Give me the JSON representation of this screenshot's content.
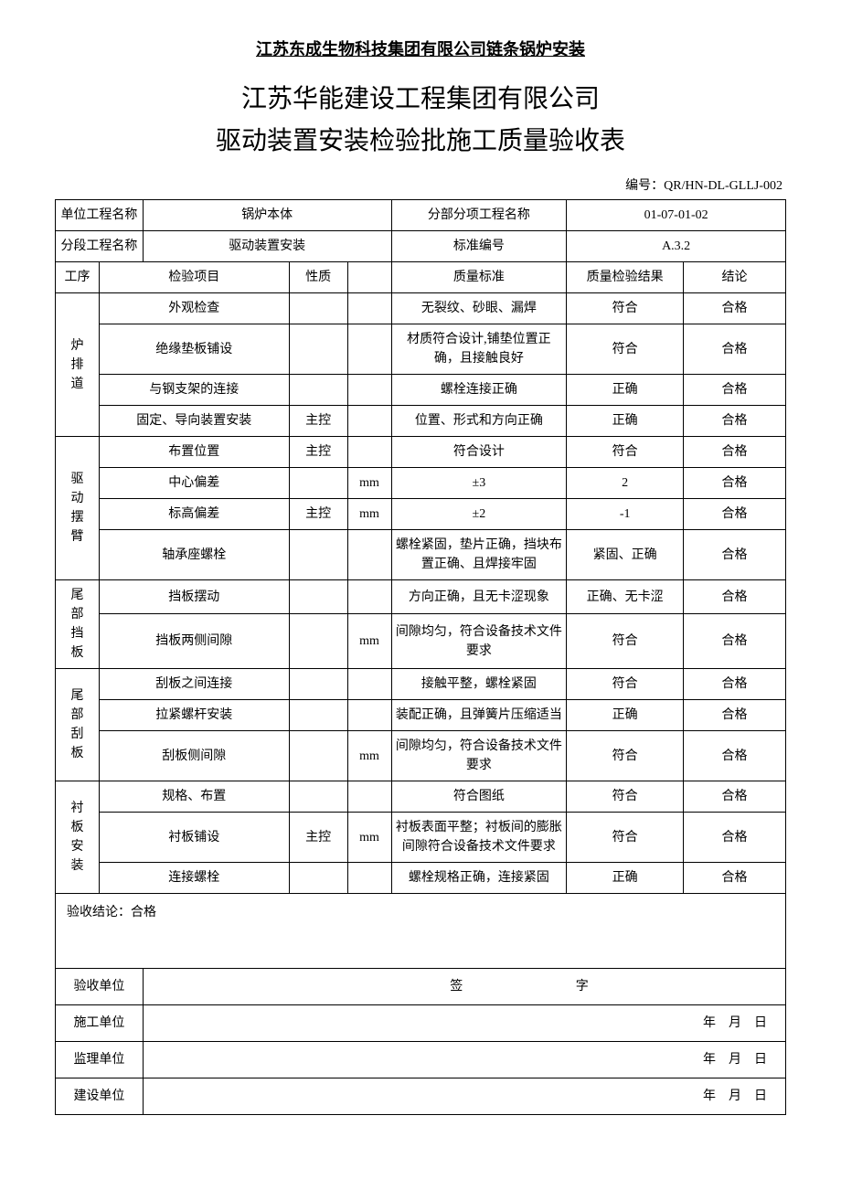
{
  "header": "江苏东成生物科技集团有限公司链条锅炉安装",
  "title1": "江苏华能建设工程集团有限公司",
  "title2": "驱动装置安装检验批施工质量验收表",
  "docNoLabel": "编号：",
  "docNo": "QR/HN-DL-GLLJ-002",
  "meta": {
    "unitProjectLabel": "单位工程名称",
    "unitProject": "锅炉本体",
    "subProjectLabel": "分部分项工程名称",
    "subProject": "01-07-01-02",
    "segmentLabel": "分段工程名称",
    "segment": "驱动装置安装",
    "stdNoLabel": "标准编号",
    "stdNo": "A.3.2"
  },
  "head": {
    "proc": "工序",
    "item": "检验项目",
    "nature": "性质",
    "unit": "",
    "std": "质量标准",
    "result": "质量检验结果",
    "concl": "结论"
  },
  "groups": [
    {
      "name": "炉排道",
      "rows": [
        {
          "item": "外观检查",
          "nature": "",
          "unit": "",
          "std": "无裂纹、砂眼、漏焊",
          "result": "符合",
          "concl": "合格"
        },
        {
          "item": "绝缘垫板铺设",
          "nature": "",
          "unit": "",
          "std": "材质符合设计,铺垫位置正确，且接触良好",
          "result": "符合",
          "concl": "合格"
        },
        {
          "item": "与钢支架的连接",
          "nature": "",
          "unit": "",
          "std": "螺栓连接正确",
          "result": "正确",
          "concl": "合格"
        },
        {
          "item": "固定、导向装置安装",
          "nature": "主控",
          "unit": "",
          "std": "位置、形式和方向正确",
          "result": "正确",
          "concl": "合格"
        }
      ]
    },
    {
      "name": "驱动摆臂",
      "rows": [
        {
          "item": "布置位置",
          "nature": "主控",
          "unit": "",
          "std": "符合设计",
          "result": "符合",
          "concl": "合格"
        },
        {
          "item": "中心偏差",
          "nature": "",
          "unit": "mm",
          "std": "±3",
          "result": "2",
          "concl": "合格"
        },
        {
          "item": "标高偏差",
          "nature": "主控",
          "unit": "mm",
          "std": "±2",
          "result": "-1",
          "concl": "合格"
        },
        {
          "item": "轴承座螺栓",
          "nature": "",
          "unit": "",
          "std": "螺栓紧固，垫片正确，挡块布置正确、且焊接牢固",
          "result": "紧固、正确",
          "concl": "合格"
        }
      ]
    },
    {
      "name": "尾部挡板",
      "rows": [
        {
          "item": "挡板摆动",
          "nature": "",
          "unit": "",
          "std": "方向正确，且无卡涩现象",
          "result": "正确、无卡涩",
          "concl": "合格"
        },
        {
          "item": "挡板两侧间隙",
          "nature": "",
          "unit": "mm",
          "std": "间隙均匀，符合设备技术文件要求",
          "result": "符合",
          "concl": "合格"
        }
      ]
    },
    {
      "name": "尾部刮板",
      "rows": [
        {
          "item": "刮板之间连接",
          "nature": "",
          "unit": "",
          "std": "接触平整，螺栓紧固",
          "result": "符合",
          "concl": "合格"
        },
        {
          "item": "拉紧螺杆安装",
          "nature": "",
          "unit": "",
          "std": "装配正确，且弹簧片压缩适当",
          "result": "正确",
          "concl": "合格"
        },
        {
          "item": "刮板侧间隙",
          "nature": "",
          "unit": "mm",
          "std": "间隙均匀，符合设备技术文件要求",
          "result": "符合",
          "concl": "合格"
        }
      ]
    },
    {
      "name": "衬板安装",
      "rows": [
        {
          "item": "规格、布置",
          "nature": "",
          "unit": "",
          "std": "符合图纸",
          "result": "符合",
          "concl": "合格"
        },
        {
          "item": "衬板铺设",
          "nature": "主控",
          "unit": "mm",
          "std": "衬板表面平整；衬板间的膨胀间隙符合设备技术文件要求",
          "result": "符合",
          "concl": "合格"
        },
        {
          "item": "连接螺栓",
          "nature": "",
          "unit": "",
          "std": "螺栓规格正确，连接紧固",
          "result": "正确",
          "concl": "合格"
        }
      ]
    }
  ],
  "conclusionLabel": "验收结论：",
  "conclusion": "合格",
  "sig": {
    "acceptUnit": "验收单位",
    "sigLabel": "签",
    "sigLabel2": "字",
    "construct": "施工单位",
    "supervise": "监理单位",
    "owner": "建设单位",
    "date": "年　月　日"
  }
}
